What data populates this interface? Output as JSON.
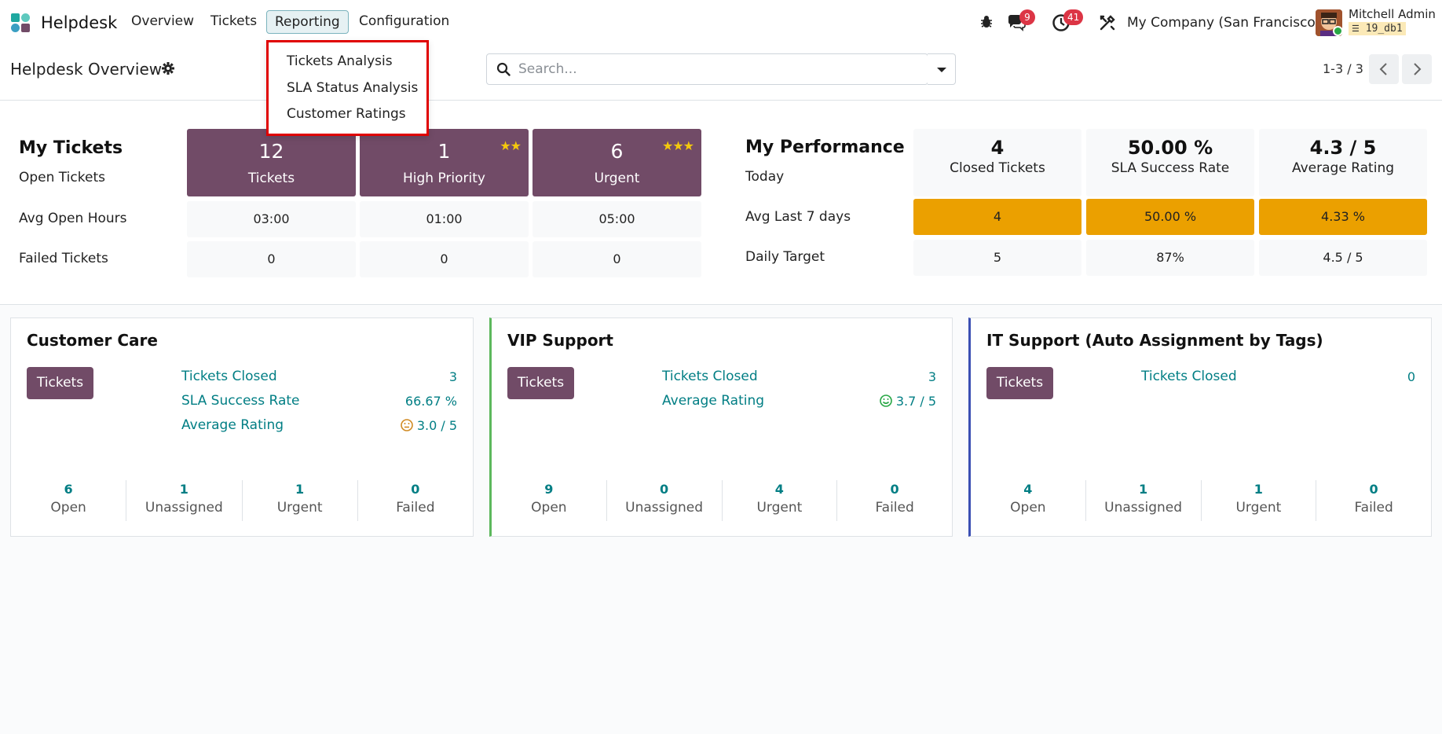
{
  "navbar": {
    "app_name": "Helpdesk",
    "menus": [
      "Overview",
      "Tickets",
      "Reporting",
      "Configuration"
    ],
    "messages_badge": "9",
    "activities_badge": "41",
    "company": "My Company (San Francisco)",
    "user_name": "Mitchell Admin",
    "db_name": "19_db1"
  },
  "reporting_menu": {
    "items": [
      "Tickets Analysis",
      "SLA Status Analysis",
      "Customer Ratings"
    ]
  },
  "control_panel": {
    "title": "Helpdesk Overview",
    "search_placeholder": "Search...",
    "pager": "1-3 / 3"
  },
  "my_tickets": {
    "title": "My Tickets",
    "row_labels": [
      "Open Tickets",
      "Avg Open Hours",
      "Failed Tickets"
    ],
    "cards": [
      {
        "value": "12",
        "label": "Tickets",
        "stars": ""
      },
      {
        "value": "1",
        "label": "High Priority",
        "stars": "★★"
      },
      {
        "value": "6",
        "label": "Urgent",
        "stars": "★★★"
      }
    ],
    "avg_open_hours": [
      "03:00",
      "01:00",
      "05:00"
    ],
    "failed": [
      "0",
      "0",
      "0"
    ]
  },
  "my_performance": {
    "title": "My Performance",
    "row_labels": [
      "Today",
      "Avg Last 7 days",
      "Daily Target"
    ],
    "headers": [
      {
        "value": "4",
        "label": "Closed Tickets"
      },
      {
        "value": "50.00 %",
        "label": "SLA Success Rate"
      },
      {
        "value": "4.3 / 5",
        "label": "Average Rating"
      }
    ],
    "avg_last_7": [
      "4",
      "50.00 %",
      "4.33 %"
    ],
    "daily_target": [
      "5",
      "87%",
      "4.5 / 5"
    ]
  },
  "teams": [
    {
      "name": "Customer Care",
      "button": "Tickets",
      "border_color": "#dee2e6",
      "kpis": [
        {
          "label": "Tickets Closed",
          "value": "3"
        },
        {
          "label": "SLA Success Rate",
          "value": "66.67 %"
        },
        {
          "label": "Average Rating",
          "value": "3.0 / 5",
          "icon": "neutral-face"
        }
      ],
      "stats": [
        {
          "n": "6",
          "t": "Open"
        },
        {
          "n": "1",
          "t": "Unassigned"
        },
        {
          "n": "1",
          "t": "Urgent"
        },
        {
          "n": "0",
          "t": "Failed"
        }
      ]
    },
    {
      "name": "VIP Support",
      "button": "Tickets",
      "border_color": "#5cb85c",
      "kpis": [
        {
          "label": "Tickets Closed",
          "value": "3"
        },
        {
          "label": "Average Rating",
          "value": "3.7 / 5",
          "icon": "happy-face"
        }
      ],
      "stats": [
        {
          "n": "9",
          "t": "Open"
        },
        {
          "n": "0",
          "t": "Unassigned"
        },
        {
          "n": "4",
          "t": "Urgent"
        },
        {
          "n": "0",
          "t": "Failed"
        }
      ]
    },
    {
      "name": "IT Support (Auto Assignment by Tags)",
      "button": "Tickets",
      "border_color": "#3b4fb3",
      "kpis": [
        {
          "label": "Tickets Closed",
          "value": "0"
        }
      ],
      "stats": [
        {
          "n": "4",
          "t": "Open"
        },
        {
          "n": "1",
          "t": "Unassigned"
        },
        {
          "n": "1",
          "t": "Urgent"
        },
        {
          "n": "0",
          "t": "Failed"
        }
      ]
    }
  ]
}
